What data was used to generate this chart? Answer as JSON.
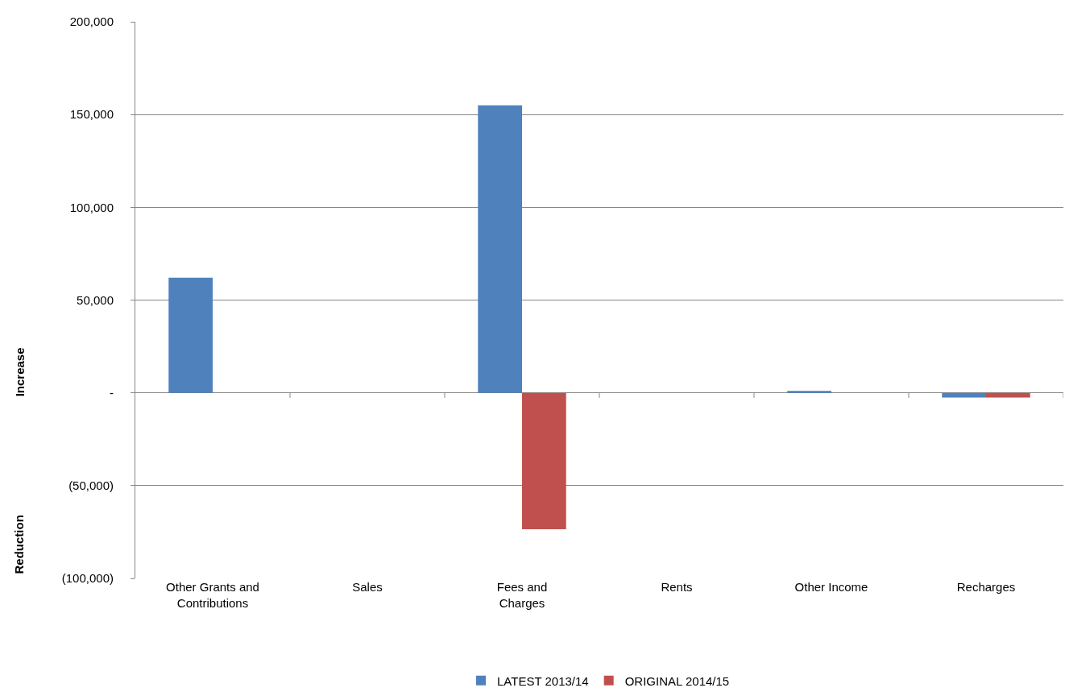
{
  "chart_data": {
    "type": "bar",
    "categories": [
      "Other Grants and Contributions",
      "Sales",
      "Fees and Charges",
      "Rents",
      "Other Income",
      "Recharges"
    ],
    "series": [
      {
        "name": "LATEST 2013/14",
        "color": "#4f81bd",
        "values": [
          62000,
          0,
          155000,
          0,
          1000,
          -2500
        ]
      },
      {
        "name": "ORIGINAL 2014/15",
        "color": "#c0504d",
        "values": [
          0,
          0,
          -73500,
          0,
          0,
          -2500
        ]
      }
    ],
    "ylim": [
      -100000,
      200000
    ],
    "yticks": [
      {
        "value": -100000,
        "label": "(100,000)"
      },
      {
        "value": -50000,
        "label": "(50,000)"
      },
      {
        "value": 0,
        "label": "-"
      },
      {
        "value": 50000,
        "label": "50,000"
      },
      {
        "value": 100000,
        "label": "100,000"
      },
      {
        "value": 150000,
        "label": "150,000"
      },
      {
        "value": 200000,
        "label": "200,000"
      }
    ],
    "annotations": [
      "Increase",
      "Reduction"
    ],
    "grid": "y",
    "legend": "bottom"
  }
}
